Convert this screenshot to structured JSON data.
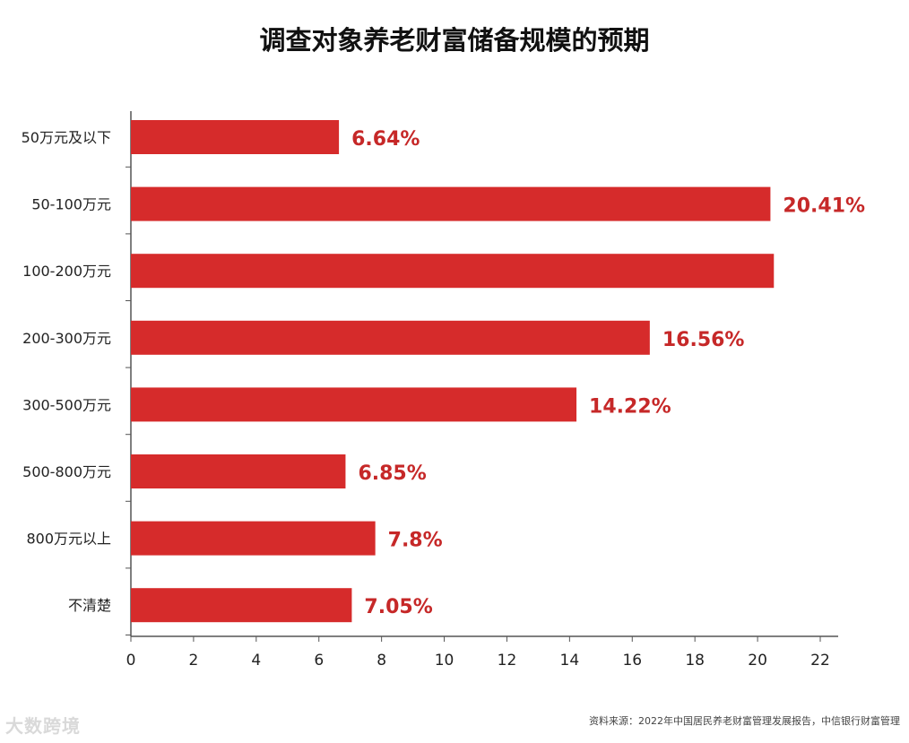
{
  "colors": {
    "bar": "#d62b2b",
    "label": "#c62828",
    "axis": "#555555",
    "text": "#222222"
  },
  "watermark": "大数跨境",
  "source": "资料来源：2022年中国居民养老财富管理发展报告，中信银行财富管理",
  "chart_data": {
    "type": "bar",
    "orientation": "horizontal",
    "title": "调查对象养老财富储备规模的预期",
    "xlabel": "",
    "ylabel": "",
    "categories": [
      "50万元及以下",
      "50-100万元",
      "100-200万元",
      "200-300万元",
      "300-500万元",
      "500-800万元",
      "800万元以上",
      "不清楚"
    ],
    "values": [
      6.64,
      20.41,
      20.52,
      16.56,
      14.22,
      6.85,
      7.8,
      7.05
    ],
    "data_labels": [
      "6.64%",
      "20.41%",
      "",
      "16.56%",
      "14.22%",
      "6.85%",
      "7.8%",
      "7.05%"
    ],
    "xlim": [
      0,
      22
    ],
    "xticks": [
      0,
      2,
      4,
      6,
      8,
      10,
      12,
      14,
      16,
      18,
      20,
      22
    ],
    "grid": false,
    "legend": "none"
  }
}
